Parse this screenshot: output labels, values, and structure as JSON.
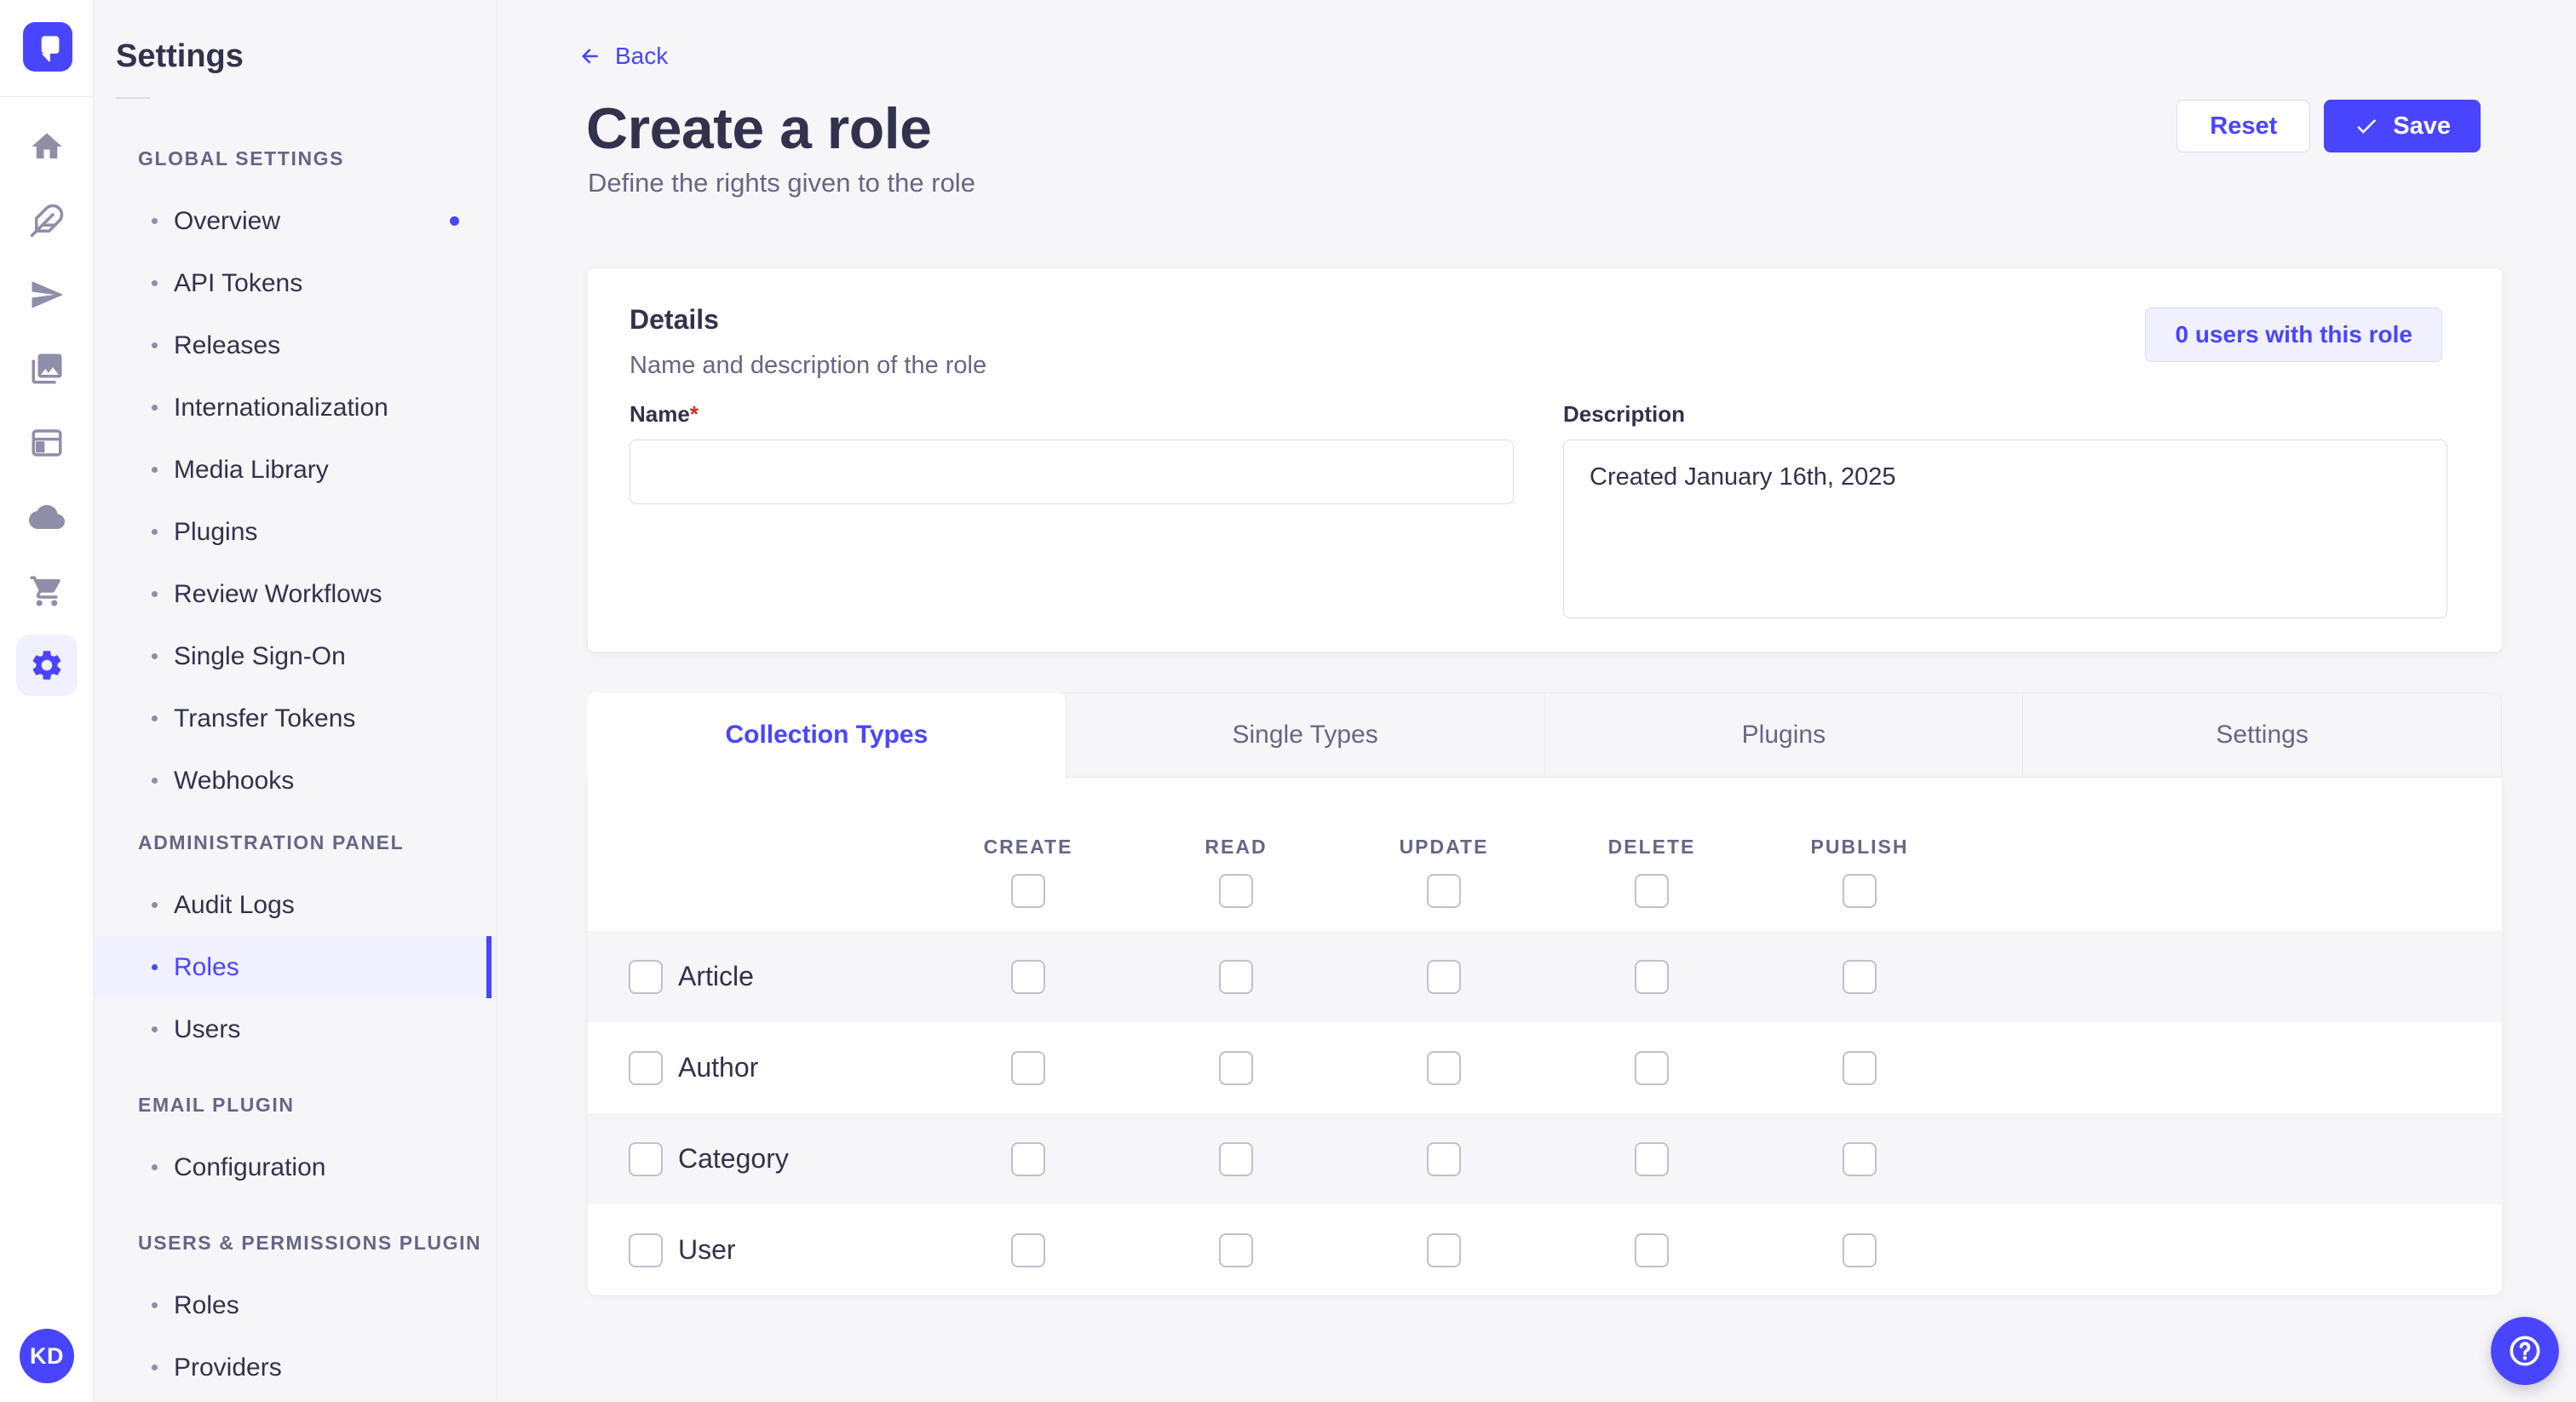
{
  "colors": {
    "primary": "#4945FF",
    "primary_light_bg": "#F0F0FF",
    "primary_border": "#D9D8FF",
    "page_bg": "#F6F6F9",
    "border": "#EAEAEF",
    "input_border": "#DCDCE4",
    "text": "#32324D",
    "text_muted": "#666687",
    "icon_muted": "#8E8EA9",
    "required": "#D02B20"
  },
  "rail": {
    "logo_icon": "strapi-logo",
    "icons": [
      {
        "name": "home-icon"
      },
      {
        "name": "feather-icon"
      },
      {
        "name": "send-icon"
      },
      {
        "name": "media-library-icon"
      },
      {
        "name": "layout-icon"
      },
      {
        "name": "cloud-icon"
      },
      {
        "name": "cart-icon"
      },
      {
        "name": "gear-icon",
        "active": true
      }
    ],
    "avatar_initials": "KD"
  },
  "sidebar": {
    "title": "Settings",
    "sections": [
      {
        "label": "GLOBAL SETTINGS",
        "items": [
          {
            "label": "Overview",
            "notification": true
          },
          {
            "label": "API Tokens"
          },
          {
            "label": "Releases"
          },
          {
            "label": "Internationalization"
          },
          {
            "label": "Media Library"
          },
          {
            "label": "Plugins"
          },
          {
            "label": "Review Workflows"
          },
          {
            "label": "Single Sign-On"
          },
          {
            "label": "Transfer Tokens"
          },
          {
            "label": "Webhooks"
          }
        ]
      },
      {
        "label": "ADMINISTRATION PANEL",
        "items": [
          {
            "label": "Audit Logs"
          },
          {
            "label": "Roles",
            "active": true
          },
          {
            "label": "Users"
          }
        ]
      },
      {
        "label": "EMAIL PLUGIN",
        "items": [
          {
            "label": "Configuration"
          }
        ]
      },
      {
        "label": "USERS & PERMISSIONS PLUGIN",
        "items": [
          {
            "label": "Roles"
          },
          {
            "label": "Providers"
          }
        ]
      }
    ]
  },
  "header": {
    "back_label": "Back",
    "title": "Create a role",
    "subtitle": "Define the rights given to the role",
    "reset_label": "Reset",
    "save_label": "Save"
  },
  "details": {
    "title": "Details",
    "subtitle": "Name and description of the role",
    "users_button_label": "0 users with this role",
    "name_label": "Name",
    "required_marker": "*",
    "name_value": "",
    "description_label": "Description",
    "description_value": "Created January 16th, 2025"
  },
  "tabs": [
    {
      "label": "Collection Types",
      "active": true
    },
    {
      "label": "Single Types"
    },
    {
      "label": "Plugins"
    },
    {
      "label": "Settings"
    }
  ],
  "permissions": {
    "columns": [
      "CREATE",
      "READ",
      "UPDATE",
      "DELETE",
      "PUBLISH"
    ],
    "rows": [
      {
        "label": "Article"
      },
      {
        "label": "Author"
      },
      {
        "label": "Category"
      },
      {
        "label": "User"
      }
    ],
    "all_unchecked": true
  }
}
